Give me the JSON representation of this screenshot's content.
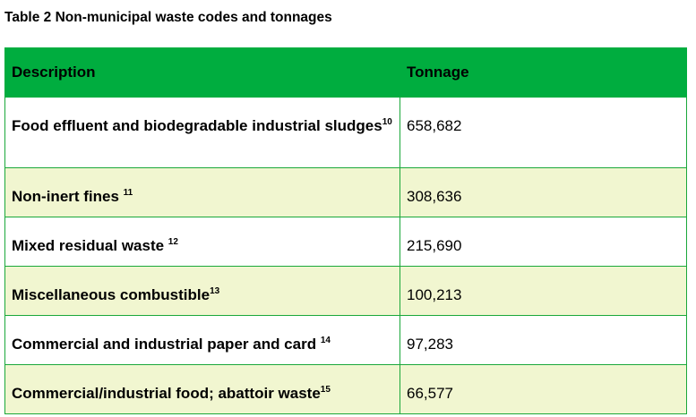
{
  "title": "Table 2 Non-municipal waste codes and tonnages",
  "colors": {
    "header_bg": "#00ad3f",
    "alt_row_bg": "#f1f6d0",
    "border": "#1aa83a"
  },
  "table": {
    "headers": [
      "Description",
      "Tonnage"
    ],
    "rows": [
      {
        "description": "Food effluent and biodegradable industrial sludges",
        "footnote": "10",
        "tonnage": "658,682"
      },
      {
        "description": "Non-inert fines ",
        "footnote": "11",
        "tonnage": "308,636"
      },
      {
        "description": "Mixed residual waste ",
        "footnote": "12",
        "tonnage": "215,690"
      },
      {
        "description": "Miscellaneous combustible",
        "footnote": "13",
        "tonnage": "100,213"
      },
      {
        "description": "Commercial and industrial paper and card ",
        "footnote": "14",
        "tonnage": "97,283"
      },
      {
        "description": "Commercial/industrial food; abattoir waste",
        "footnote": "15",
        "tonnage": "66,577"
      }
    ]
  }
}
